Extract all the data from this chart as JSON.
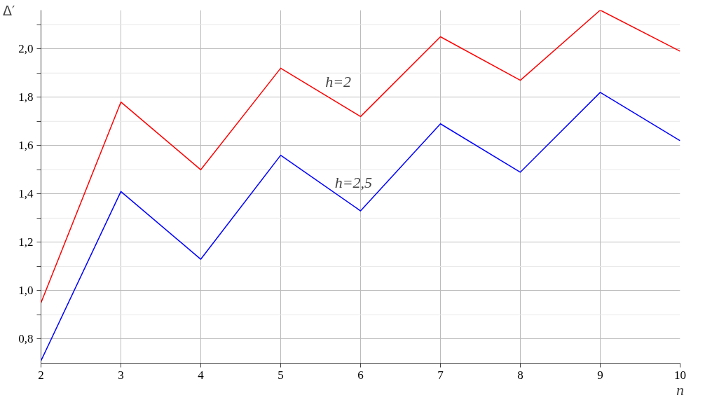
{
  "chart_data": {
    "type": "line",
    "xlabel": "n",
    "ylabel": "Δ′",
    "x": [
      2,
      3,
      4,
      5,
      6,
      7,
      8,
      9,
      10
    ],
    "series": [
      {
        "color": "#ff0000",
        "values": [
          0.95,
          1.78,
          1.5,
          1.92,
          1.72,
          2.05,
          1.87,
          2.16,
          1.99
        ]
      },
      {
        "color": "#0000ff",
        "values": [
          0.71,
          1.41,
          1.13,
          1.56,
          1.33,
          1.69,
          1.49,
          1.82,
          1.62
        ]
      }
    ],
    "xlim": [
      2,
      10
    ],
    "ylim": [
      0.7,
      2.16
    ],
    "xticks": [
      2,
      3,
      4,
      5,
      6,
      7,
      8,
      9,
      10
    ],
    "yticks": [
      {
        "value": 0.8,
        "label": "0,8"
      },
      {
        "value": 0.9,
        "label": null
      },
      {
        "value": 1.0,
        "label": "1,0"
      },
      {
        "value": 1.1,
        "label": null
      },
      {
        "value": 1.2,
        "label": "1,2"
      },
      {
        "value": 1.3,
        "label": null
      },
      {
        "value": 1.4,
        "label": "1,4"
      },
      {
        "value": 1.5,
        "label": null
      },
      {
        "value": 1.6,
        "label": "1,6"
      },
      {
        "value": 1.7,
        "label": null
      },
      {
        "value": 1.8,
        "label": "1,8"
      },
      {
        "value": 1.9,
        "label": null
      },
      {
        "value": 2.0,
        "label": "2,0"
      },
      {
        "value": 2.1,
        "label": null
      }
    ],
    "annotations": [
      "h=2",
      "h=2,5"
    ],
    "grid": true,
    "marker": "none",
    "line_style": "solid"
  }
}
